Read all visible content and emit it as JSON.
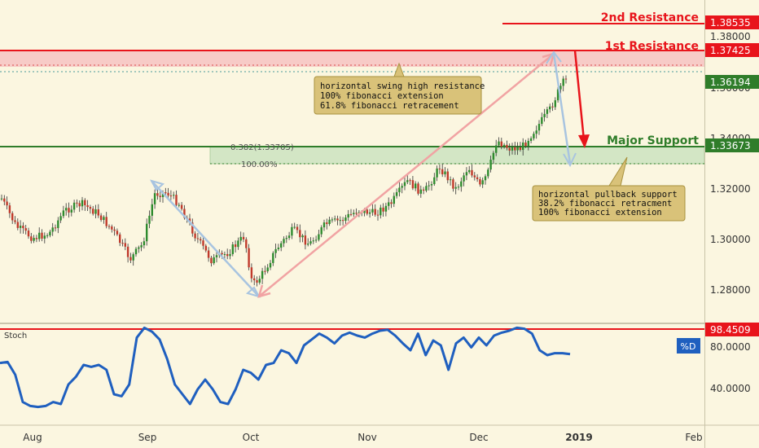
{
  "chart_data": [
    {
      "type": "candlestick",
      "ylim": [
        1.2655,
        1.3935
      ],
      "ticks": [
        "1.28000",
        "1.30000",
        "1.32000",
        "1.34000",
        "1.36000",
        "1.38000"
      ],
      "levels": [
        {
          "name": "2nd Resistance",
          "value": "1.38535",
          "color": "#e8141b"
        },
        {
          "name": "1st Resistance",
          "value": "1.37425",
          "color": "#e8141b"
        },
        {
          "name": "",
          "value": "1.36194",
          "color": "#2f7d2a"
        },
        {
          "name": "Major Support",
          "value": "1.33673",
          "color": "#2f7d2a"
        }
      ],
      "fib_labels": [
        "0.382(1.33705)",
        "100.00%"
      ],
      "annotations": [
        {
          "lines": [
            "horizontal swing high resistance",
            "100% fibonacci extension",
            "61.8% fibonacci retracement"
          ]
        },
        {
          "lines": [
            "horizontal pullback support",
            "38.2% fibonacci retracment",
            "100% fibonacci extension"
          ]
        }
      ]
    },
    {
      "type": "line",
      "title": "Stoch",
      "series_label": "%D",
      "ylim": [
        0,
        100
      ],
      "ticks": [
        "40.0000",
        "80.0000"
      ],
      "level": "98.4509",
      "values": [
        62,
        63,
        50,
        22,
        18,
        17,
        18,
        22,
        20,
        40,
        48,
        60,
        58,
        60,
        55,
        30,
        28,
        40,
        88,
        98,
        94,
        86,
        66,
        40,
        30,
        20,
        35,
        45,
        35,
        22,
        20,
        35,
        55,
        52,
        45,
        60,
        62,
        75,
        72,
        62,
        80,
        86,
        92,
        88,
        82,
        90,
        93,
        90,
        88,
        92,
        95,
        96,
        90,
        82,
        75,
        92,
        70,
        85,
        80,
        55,
        82,
        88,
        78,
        88,
        80,
        90,
        93,
        95,
        98,
        97,
        92,
        75,
        70,
        72,
        72,
        71
      ]
    }
  ],
  "x_axis": {
    "labels": [
      "Aug",
      "Sep",
      "Oct",
      "Nov",
      "Dec",
      "2019",
      "Feb"
    ],
    "highlight": "2019"
  }
}
